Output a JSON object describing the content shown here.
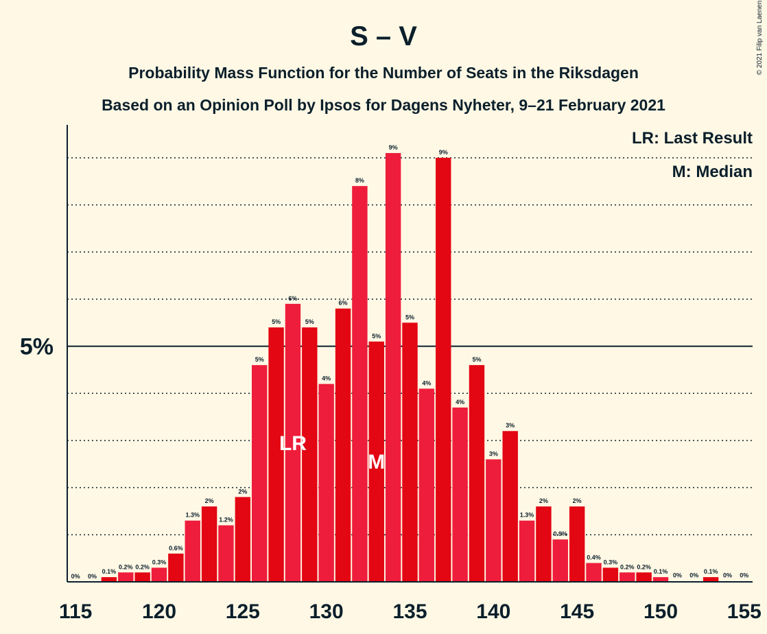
{
  "chart_data": {
    "type": "bar",
    "title": "S – V",
    "subtitle": "Probability Mass Function for the Number of Seats in the Riksdagen",
    "subtitle2": "Based on an Opinion Poll by Ipsos for Dagens Nyheter, 9–21 February 2021",
    "copyright": "© 2021 Filip van Laenen",
    "legend": [
      "LR: Last Result",
      "M: Median"
    ],
    "legend_position": "top-right",
    "x_ticks": [
      115,
      120,
      125,
      130,
      135,
      140,
      145,
      150,
      155
    ],
    "y_tick_label": "5%",
    "xlim": [
      114.5,
      155.5
    ],
    "ylim": [
      0,
      9.8
    ],
    "grid": "dotted",
    "x": [
      115,
      116,
      117,
      118,
      119,
      120,
      121,
      122,
      123,
      124,
      125,
      126,
      127,
      128,
      129,
      130,
      131,
      132,
      133,
      134,
      135,
      136,
      137,
      138,
      139,
      140,
      141,
      142,
      143,
      144,
      145,
      146,
      147,
      148,
      149,
      150,
      151,
      152,
      153,
      154,
      155
    ],
    "values": [
      0,
      0,
      0.1,
      0.2,
      0.2,
      0.3,
      0.6,
      1.3,
      1.6,
      1.2,
      1.8,
      4.6,
      5.4,
      5.9,
      5.4,
      4.2,
      5.8,
      8.4,
      5.1,
      9.1,
      5.5,
      4.1,
      9.0,
      3.7,
      4.6,
      2.6,
      3.2,
      1.3,
      1.6,
      0.9,
      1.6,
      0.4,
      0.3,
      0.2,
      0.2,
      0.1,
      0.02,
      0.02,
      0.1,
      0.02,
      0.02
    ],
    "labels": [
      "0%",
      "0%",
      "0.1%",
      "0.2%",
      "0.2%",
      "0.3%",
      "0.6%",
      "1.3%",
      "2%",
      "1.2%",
      "2%",
      "5%",
      "5%",
      "6%",
      "5%",
      "4%",
      "6%",
      "8%",
      "5%",
      "9%",
      "5%",
      "4%",
      "9%",
      "4%",
      "5%",
      "3%",
      "3%",
      "1.3%",
      "2%",
      "0.9%",
      "2%",
      "0.4%",
      "0.3%",
      "0.2%",
      "0.2%",
      "0.1%",
      "0%",
      "0%",
      "0.1%",
      "0%",
      "0%"
    ],
    "last_result_seat": 128,
    "last_result_label": "LR",
    "median_seat": 133,
    "median_label": "M",
    "colors": {
      "odd": "#e8ca2b",
      "bar_a": "#e30613",
      "bar_b": "#ee1d3b",
      "background": "#fff8e5",
      "text": "#0b1f2b"
    }
  }
}
